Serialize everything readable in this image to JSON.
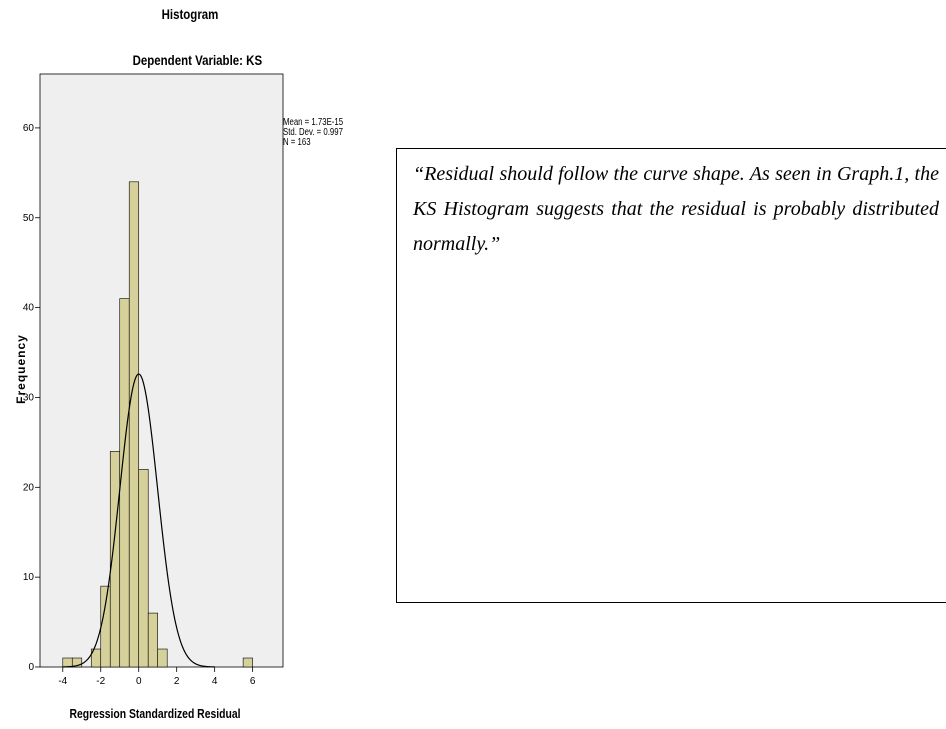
{
  "chart_data": {
    "type": "bar",
    "title": "Histogram",
    "subtitle": "Dependent Variable: KS",
    "xlabel": "Regression Standardized Residual",
    "ylabel": "Frequency",
    "xlim": [
      -5.2,
      7.6
    ],
    "ylim": [
      0,
      66
    ],
    "bin_width": 0.5,
    "bins": [
      {
        "start": -4.0,
        "value": 1
      },
      {
        "start": -3.5,
        "value": 1
      },
      {
        "start": -3.0,
        "value": 0
      },
      {
        "start": -2.5,
        "value": 2
      },
      {
        "start": -2.0,
        "value": 9
      },
      {
        "start": -1.5,
        "value": 24
      },
      {
        "start": -1.0,
        "value": 41
      },
      {
        "start": -0.5,
        "value": 54
      },
      {
        "start": 0.0,
        "value": 22
      },
      {
        "start": 0.5,
        "value": 6
      },
      {
        "start": 1.0,
        "value": 2
      },
      {
        "start": 5.5,
        "value": 1
      }
    ],
    "x_ticks": [
      -4,
      -2,
      0,
      2,
      4,
      6
    ],
    "y_ticks": [
      0,
      10,
      20,
      30,
      40,
      50,
      60
    ],
    "normal_curve": {
      "mean": 1.73e-15,
      "std": 0.997,
      "n": 163
    },
    "stats": [
      "Mean = 1.73E-15",
      "Std. Dev. = 0.997",
      "N = 163"
    ],
    "colors": {
      "bar_fill": "#d6d19a",
      "plot_background": "#efefef",
      "curve": "#000000"
    }
  },
  "note": {
    "text": "“Residual should follow the curve shape. As seen in Graph.1, the KS Histogram suggests that the residual is probably distributed normally.”"
  }
}
